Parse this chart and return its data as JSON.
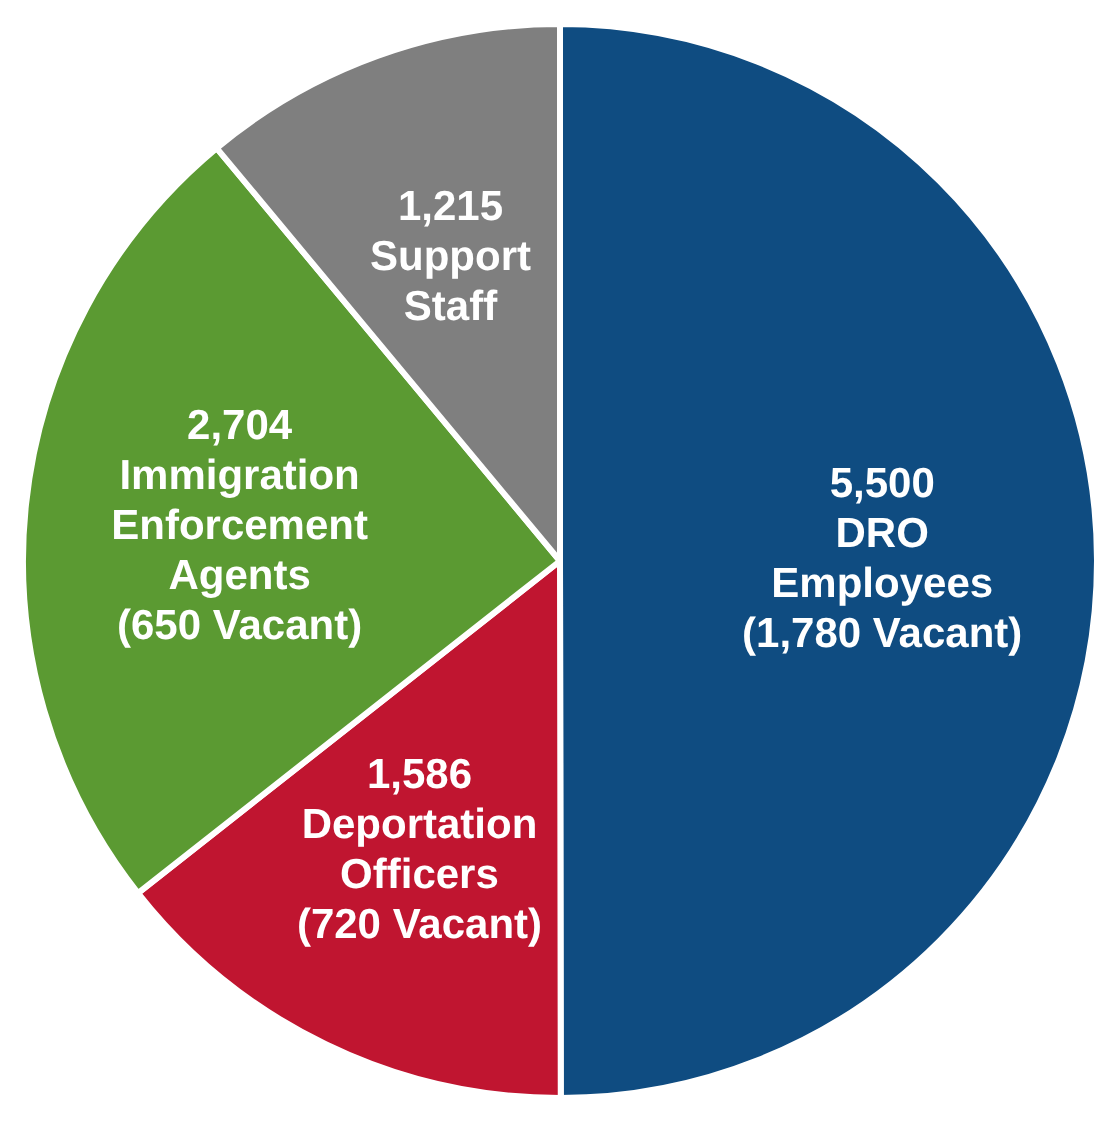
{
  "chart_data": {
    "type": "pie",
    "categories": [
      "DRO Employees (1,780 Vacant)",
      "Deportation Officers (720 Vacant)",
      "Immigration Enforcement Agents (650 Vacant)",
      "Support Staff"
    ],
    "values": [
      5500,
      1586,
      2704,
      1215
    ],
    "value_labels": [
      "5,500",
      "1,586",
      "2,704",
      "1,215"
    ],
    "colors": [
      "#0f4c81",
      "#c01530",
      "#5b9a32",
      "#7f7f7f"
    ],
    "legend": false
  }
}
